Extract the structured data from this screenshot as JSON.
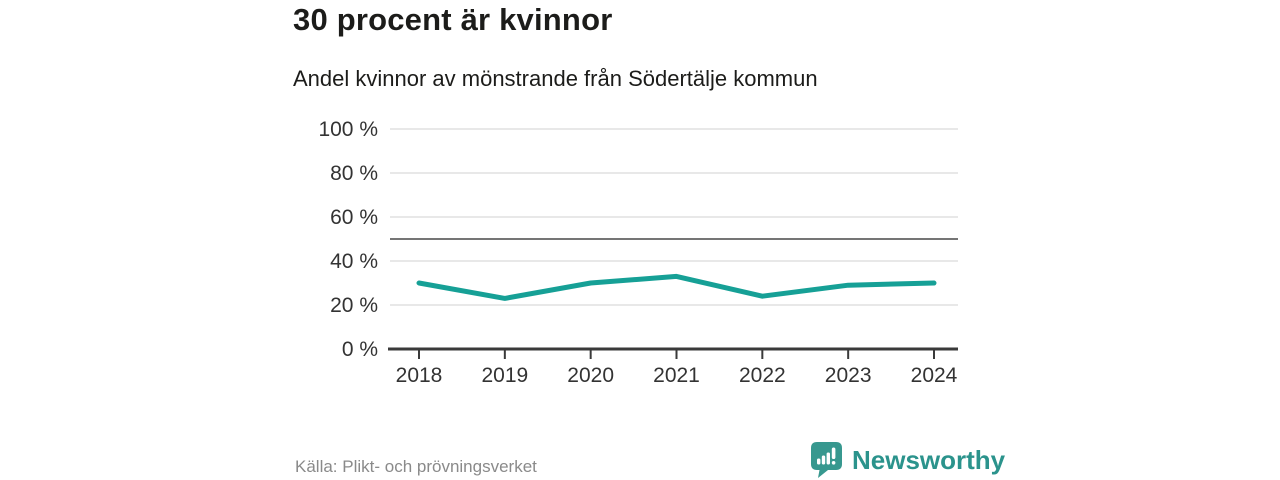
{
  "header": {
    "title": "30 procent är kvinnor",
    "subtitle": "Andel kvinnor av mönstrande från Södertälje kommun"
  },
  "chart_data": {
    "type": "line",
    "title": "30 procent är kvinnor",
    "subtitle": "Andel kvinnor av mönstrande från Södertälje kommun",
    "x": [
      "2018",
      "2019",
      "2020",
      "2021",
      "2022",
      "2023",
      "2024"
    ],
    "series": [
      {
        "name": "Andel kvinnor",
        "color": "#16a096",
        "values": [
          30,
          23,
          30,
          33,
          24,
          29,
          30
        ]
      }
    ],
    "unit": "%",
    "ylim": [
      0,
      100
    ],
    "y_ticks": [
      0,
      20,
      40,
      60,
      80,
      100
    ],
    "y_tick_suffix": " %",
    "reference_line": 50,
    "grid": true,
    "legend": "none",
    "colors": {
      "grid": "#e1e1e1",
      "axis": "#3a3a3a",
      "reference": "#757575",
      "tick_label": "#333333"
    }
  },
  "footer": {
    "source": "Källa: Plikt- och prövningsverket",
    "brand": "Newsworthy"
  },
  "brand_colors": {
    "logo_fill": "#37988f",
    "logo_glyph": "#ffffff",
    "text": "#2b938c"
  }
}
